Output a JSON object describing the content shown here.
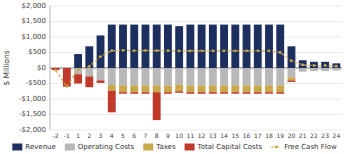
{
  "chart_data": {
    "type": "bar",
    "stacked": true,
    "categories": [
      "-2",
      "-1",
      "1",
      "2",
      "3",
      "4",
      "5",
      "6",
      "7",
      "8",
      "9",
      "10",
      "11",
      "12",
      "13",
      "14",
      "15",
      "16",
      "17",
      "18",
      "19",
      "20",
      "21",
      "22",
      "23",
      "24"
    ],
    "ylabel": "$ Millions",
    "ylim": [
      -2000,
      2000
    ],
    "yticks": [
      {
        "value": -2000,
        "label": "-$2,000"
      },
      {
        "value": -1500,
        "label": "-$1,500"
      },
      {
        "value": -1000,
        "label": "-$1,000"
      },
      {
        "value": -500,
        "label": "-$500"
      },
      {
        "value": 0,
        "label": "$0"
      },
      {
        "value": 500,
        "label": "$500"
      },
      {
        "value": 1000,
        "label": "$1,000"
      },
      {
        "value": 1500,
        "label": "$1,500"
      },
      {
        "value": 2000,
        "label": "$2,000"
      }
    ],
    "grid": true,
    "legend": "bottom",
    "series": [
      {
        "name": "Revenue",
        "type": "bar",
        "color": "#1c2f5e",
        "values": [
          0,
          0,
          450,
          700,
          1050,
          1400,
          1400,
          1400,
          1400,
          1400,
          1400,
          1350,
          1400,
          1400,
          1400,
          1400,
          1400,
          1400,
          1400,
          1400,
          1400,
          700,
          250,
          200,
          200,
          150
        ]
      },
      {
        "name": "Operating Costs",
        "type": "bar",
        "color": "#b8b8b8",
        "values": [
          0,
          0,
          -200,
          -270,
          -400,
          -550,
          -560,
          -560,
          -560,
          -560,
          -560,
          -540,
          -560,
          -560,
          -560,
          -560,
          -560,
          -560,
          -560,
          -560,
          -560,
          -300,
          -120,
          -100,
          -100,
          -80
        ]
      },
      {
        "name": "Taxes",
        "type": "bar",
        "color": "#c9a84c",
        "values": [
          0,
          0,
          0,
          0,
          0,
          -180,
          -220,
          -220,
          -220,
          -220,
          -220,
          -210,
          -220,
          -220,
          -220,
          -220,
          -220,
          -220,
          -220,
          -220,
          -220,
          -100,
          0,
          0,
          0,
          0
        ]
      },
      {
        "name": "Total Capital Costs",
        "type": "bar",
        "color": "#c0392b",
        "values": [
          -70,
          -600,
          -300,
          -350,
          -80,
          -700,
          -50,
          -50,
          -50,
          -900,
          -50,
          -50,
          -50,
          -50,
          -50,
          -50,
          -50,
          -50,
          -50,
          -50,
          -50,
          -50,
          0,
          0,
          0,
          0
        ]
      },
      {
        "name": "Free Cash Flow",
        "type": "line",
        "color": "#c9a84c",
        "line_style": "dashed",
        "marker": "circle",
        "values": [
          -70,
          -600,
          -50,
          50,
          370,
          560,
          570,
          560,
          565,
          560,
          560,
          550,
          555,
          555,
          555,
          555,
          555,
          555,
          555,
          555,
          500,
          230,
          100,
          80,
          80,
          60
        ]
      }
    ]
  }
}
